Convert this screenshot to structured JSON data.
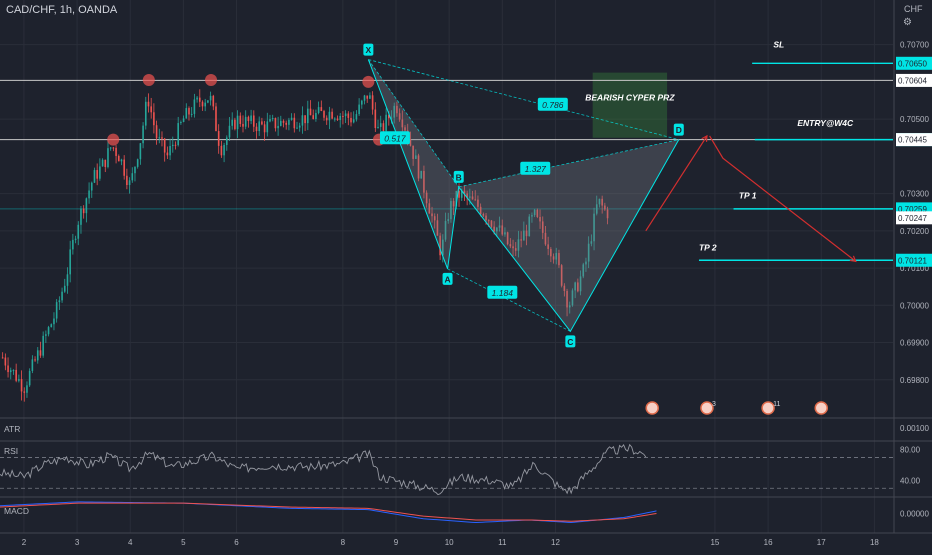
{
  "header": {
    "symbol": "CAD/CHF, 1h, OANDA",
    "currency": "CHF"
  },
  "icons": {
    "settings": "gear-icon"
  },
  "colors": {
    "bg": "#1e222d",
    "up": "#26a69a",
    "down": "#ef5350",
    "cyan": "#00e5e5",
    "grid": "#2a2e39",
    "text": "#b2b5be"
  },
  "chart_data": [
    {
      "type": "candlestick",
      "title": "CAD/CHF, 1h, OANDA",
      "ylim": [
        0.697,
        0.7082
      ],
      "xlim": [
        1.55,
        18.35
      ],
      "y_ticks": [
        "0.70700",
        "0.70500",
        "0.70300",
        "0.70200",
        "0.70100",
        "0.70000",
        "0.69900",
        "0.69800"
      ],
      "y_tick_values": [
        0.707,
        0.705,
        0.703,
        0.702,
        0.701,
        0.7,
        0.699,
        0.698
      ],
      "x_ticks": [
        "2",
        "3",
        "4",
        "5",
        "6",
        "8",
        "9",
        "10",
        "11",
        "12",
        "15",
        "16",
        "17",
        "18"
      ],
      "x_tick_values": [
        2,
        3,
        4,
        5,
        6,
        8,
        9,
        10,
        11,
        12,
        15,
        16,
        17,
        18
      ],
      "price_path": [
        [
          1.55,
          0.6987
        ],
        [
          2.0,
          0.6978
        ],
        [
          2.3,
          0.6988
        ],
        [
          2.6,
          0.6998
        ],
        [
          2.8,
          0.7008
        ],
        [
          3.0,
          0.7022
        ],
        [
          3.3,
          0.7034
        ],
        [
          3.5,
          0.7038
        ],
        [
          3.65,
          0.7043
        ],
        [
          3.8,
          0.704
        ],
        [
          4.0,
          0.7032
        ],
        [
          4.2,
          0.7045
        ],
        [
          4.33,
          0.7056
        ],
        [
          4.5,
          0.7045
        ],
        [
          4.7,
          0.704
        ],
        [
          5.0,
          0.705
        ],
        [
          5.3,
          0.7055
        ],
        [
          5.5,
          0.7056
        ],
        [
          5.7,
          0.7042
        ],
        [
          6.0,
          0.705
        ],
        [
          6.5,
          0.7048
        ],
        [
          7.8,
          0.7052
        ],
        [
          8.2,
          0.705
        ],
        [
          8.48,
          0.7057
        ],
        [
          8.68,
          0.7046
        ],
        [
          9.0,
          0.7054
        ],
        [
          9.15,
          0.7049
        ],
        [
          9.3,
          0.7042
        ],
        [
          9.6,
          0.7028
        ],
        [
          9.85,
          0.7014
        ],
        [
          10.0,
          0.7026
        ],
        [
          10.2,
          0.703
        ],
        [
          10.6,
          0.7026
        ],
        [
          11.0,
          0.7019
        ],
        [
          11.2,
          0.7014
        ],
        [
          11.6,
          0.7024
        ],
        [
          12.0,
          0.7013
        ],
        [
          12.25,
          0.7
        ],
        [
          12.55,
          0.701
        ],
        [
          12.8,
          0.7028
        ],
        [
          12.95,
          0.7025
        ]
      ],
      "swing_marks": [
        [
          3.68,
          0.70445
        ],
        [
          4.35,
          0.70605
        ],
        [
          5.52,
          0.70605
        ],
        [
          8.48,
          0.706
        ],
        [
          8.68,
          0.70445
        ]
      ],
      "horizontal_levels": [
        {
          "label": "0.70604",
          "value": 0.70604,
          "style": "white"
        },
        {
          "label": "0.70445",
          "value": 0.70445,
          "style": "white"
        },
        {
          "label": "0.70259",
          "value": 0.70259,
          "style": "cyan-faint"
        }
      ],
      "pattern": {
        "name": "BEARISH CYPER PRZ",
        "points": [
          {
            "label": "X",
            "x": 8.48,
            "y": 0.7066
          },
          {
            "label": "A",
            "x": 9.97,
            "y": 0.70098
          },
          {
            "label": "B",
            "x": 10.18,
            "y": 0.70318
          },
          {
            "label": "C",
            "x": 12.28,
            "y": 0.6993
          },
          {
            "label": "D",
            "x": 14.32,
            "y": 0.70445
          }
        ],
        "ratios": [
          {
            "label": "0.786",
            "x": 11.95,
            "y": 0.7054
          },
          {
            "label": "0.517",
            "x": 8.98,
            "y": 0.7045
          },
          {
            "label": "1.327",
            "x": 11.62,
            "y": 0.70368
          },
          {
            "label": "1.184",
            "x": 11.0,
            "y": 0.70035
          }
        ],
        "prz_box": {
          "x0": 12.7,
          "x1": 14.1,
          "y0": 0.7045,
          "y1": 0.70625
        }
      },
      "trade_levels": [
        {
          "label": "SL",
          "value": 0.7065,
          "price_label": "0.70650",
          "x0": 15.7,
          "tag_x": 16.1,
          "tag_y": 0.707
        },
        {
          "label": "ENTRY@W4C",
          "value": 0.70445,
          "price_label": "0.70445",
          "x0": 15.75,
          "tag_x": 16.55,
          "tag_y": 0.7049
        },
        {
          "label": "TP 1",
          "value": 0.70259,
          "price_label": "0.70259",
          "x0": 15.35,
          "tag_x": 15.45,
          "tag_y": 0.70295
        },
        {
          "label": "TP 2",
          "value": 0.70121,
          "price_label": "0.70121",
          "x0": 14.7,
          "tag_x": 14.7,
          "tag_y": 0.70155
        }
      ],
      "extra_price_labels": [
        {
          "label": "0.70604",
          "value": 0.70604
        },
        {
          "label": "0.70445",
          "value": 0.70445
        },
        {
          "label": "0.70247",
          "value": 0.70235
        }
      ],
      "arrows": [
        [
          [
            13.7,
            0.702
          ],
          [
            14.85,
            0.70455
          ]
        ],
        [
          [
            14.9,
            0.70455
          ],
          [
            15.15,
            0.70395
          ],
          [
            17.65,
            0.70118
          ]
        ]
      ],
      "event_icons": [
        {
          "x": 13.82,
          "count": ""
        },
        {
          "x": 14.85,
          "count": "3"
        },
        {
          "x": 16.0,
          "count": "11"
        },
        {
          "x": 17.0,
          "count": ""
        }
      ],
      "grid": true
    },
    {
      "type": "line",
      "title": "ATR",
      "y_ticks": [
        "0.00100"
      ],
      "values": []
    },
    {
      "type": "line",
      "title": "RSI",
      "y_ticks": [
        "80.00",
        "40.00"
      ],
      "ylim": [
        20,
        90
      ],
      "bands": [
        70,
        30
      ],
      "values": [
        [
          1.55,
          50
        ],
        [
          2.0,
          45
        ],
        [
          2.4,
          62
        ],
        [
          2.8,
          70
        ],
        [
          3.2,
          60
        ],
        [
          3.6,
          72
        ],
        [
          4.0,
          55
        ],
        [
          4.35,
          75
        ],
        [
          4.8,
          58
        ],
        [
          5.2,
          65
        ],
        [
          5.55,
          72
        ],
        [
          6.0,
          55
        ],
        [
          6.6,
          60
        ],
        [
          7.4,
          58
        ],
        [
          8.0,
          62
        ],
        [
          8.48,
          75
        ],
        [
          8.7,
          45
        ],
        [
          9.3,
          35
        ],
        [
          9.8,
          27
        ],
        [
          10.2,
          45
        ],
        [
          10.8,
          40
        ],
        [
          11.2,
          32
        ],
        [
          11.6,
          62
        ],
        [
          12.1,
          30
        ],
        [
          12.3,
          27
        ],
        [
          12.6,
          50
        ],
        [
          13.0,
          78
        ],
        [
          13.4,
          82
        ],
        [
          13.7,
          74
        ]
      ]
    },
    {
      "type": "line",
      "title": "MACD",
      "y_ticks": [
        "0.00000"
      ],
      "ylim": [
        -0.0012,
        0.0012
      ],
      "series": [
        {
          "values": [
            [
              1.55,
              0.0006
            ],
            [
              3.0,
              0.0009
            ],
            [
              5.0,
              0.0008
            ],
            [
              7.0,
              0.0004
            ],
            [
              8.48,
              0.0003
            ],
            [
              9.5,
              -0.0004
            ],
            [
              10.5,
              -0.0007
            ],
            [
              11.5,
              -0.0005
            ],
            [
              12.3,
              -0.0007
            ],
            [
              13.3,
              -0.0003
            ],
            [
              13.9,
              0.0002
            ]
          ]
        },
        {
          "values": [
            [
              1.55,
              0.0005
            ],
            [
              3.0,
              0.0008
            ],
            [
              5.0,
              0.0008
            ],
            [
              7.0,
              0.0005
            ],
            [
              8.48,
              0.0004
            ],
            [
              9.5,
              -0.0002
            ],
            [
              10.5,
              -0.0005
            ],
            [
              11.5,
              -0.0005
            ],
            [
              12.3,
              -0.0006
            ],
            [
              13.3,
              -0.0004
            ],
            [
              13.9,
              0.0
            ]
          ]
        }
      ]
    }
  ]
}
